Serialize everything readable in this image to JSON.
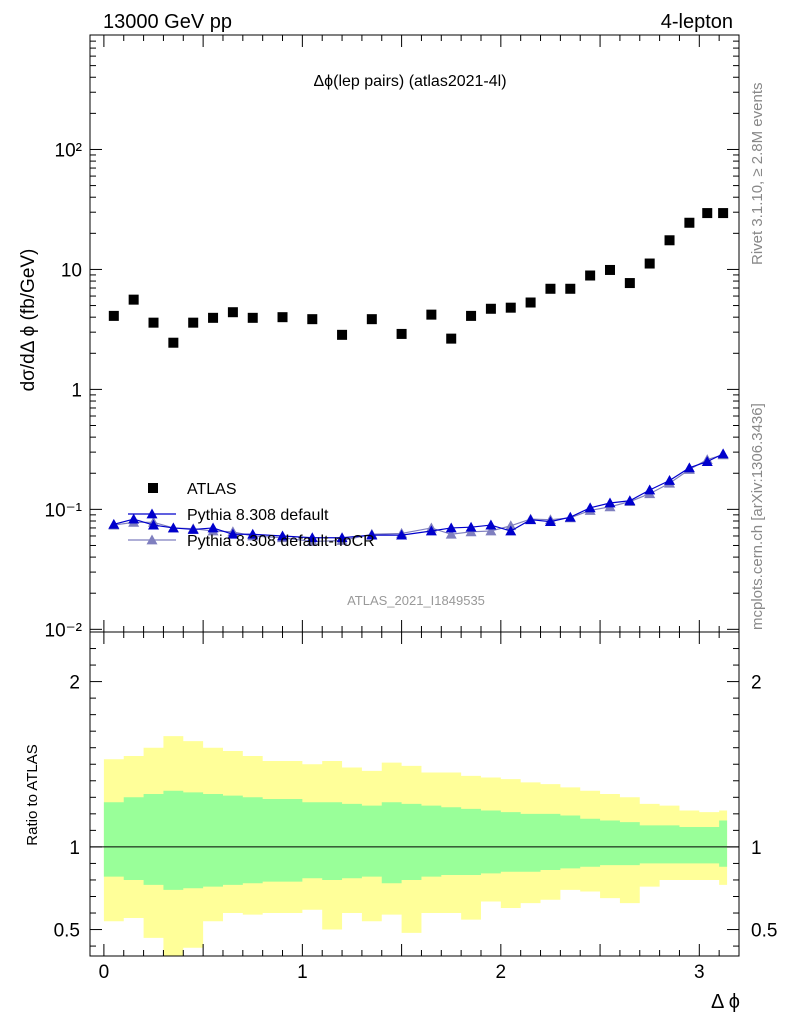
{
  "header": {
    "energy_label": "13000 GeV pp",
    "process_label": "4-lepton"
  },
  "side_labels": {
    "rivet": "Rivet 3.1.10, ≥ 2.8M events",
    "mcplots": "mcplots.cern.ch [arXiv:1306.3436]"
  },
  "colors": {
    "atlas": "#000000",
    "pythia_default": "#0000cc",
    "pythia_nocr": "#7f7fbf",
    "band_inner": "#99ff99",
    "band_outer": "#ffff99"
  },
  "chart_data": [
    {
      "type": "scatter",
      "title": "Δϕ(lep pairs) (atlas2021-4l)",
      "watermark": "ATLAS_2021_I1849535",
      "xlabel": "Δ ϕ",
      "ylabel": "dσ/dΔ ϕ (fb/GeV)",
      "yscale": "log",
      "xlim": [
        -0.07,
        3.2
      ],
      "ylim": [
        0.0095,
        900
      ],
      "ytick_labels": [
        "10⁻²",
        "10⁻¹",
        "1",
        "10",
        "10²"
      ],
      "xtick_labels": [
        "0",
        "1",
        "2",
        "3"
      ],
      "legend_position": "lower-left",
      "x": [
        0.05,
        0.15,
        0.25,
        0.35,
        0.45,
        0.55,
        0.65,
        0.75,
        0.9,
        1.05,
        1.2,
        1.35,
        1.5,
        1.65,
        1.75,
        1.85,
        1.95,
        2.05,
        2.15,
        2.25,
        2.35,
        2.45,
        2.55,
        2.65,
        2.75,
        2.85,
        2.95,
        3.04,
        3.12
      ],
      "series": [
        {
          "name": "ATLAS",
          "marker": "square",
          "values": [
            4.1,
            5.6,
            3.6,
            2.45,
            3.6,
            3.95,
            4.4,
            3.95,
            4.0,
            3.85,
            2.85,
            3.85,
            2.9,
            4.2,
            2.65,
            4.1,
            4.7,
            4.8,
            5.3,
            6.9,
            6.9,
            8.9,
            9.9,
            7.7,
            11.2,
            17.5,
            24.5,
            29.5,
            29.5
          ]
        },
        {
          "name": "Pythia 8.308 default",
          "marker": "triangle",
          "values": [
            0.075,
            0.083,
            0.074,
            0.07,
            0.068,
            0.07,
            0.062,
            0.062,
            0.06,
            0.058,
            0.058,
            0.061,
            0.061,
            0.066,
            0.07,
            0.071,
            0.074,
            0.066,
            0.082,
            0.079,
            0.086,
            0.103,
            0.113,
            0.118,
            0.145,
            0.174,
            0.222,
            0.25,
            0.29
          ]
        },
        {
          "name": "Pythia 8.308 default-noCR",
          "marker": "triangle",
          "values": [
            0.074,
            0.078,
            0.078,
            0.07,
            0.069,
            0.066,
            0.065,
            0.06,
            0.058,
            0.054,
            0.055,
            0.062,
            0.063,
            0.07,
            0.062,
            0.065,
            0.066,
            0.073,
            0.083,
            0.082,
            0.085,
            0.098,
            0.105,
            0.116,
            0.135,
            0.165,
            0.215,
            0.26,
            0.285
          ]
        }
      ]
    },
    {
      "type": "area",
      "ylabel": "Ratio to ATLAS",
      "xlabel": "Δ ϕ",
      "xlim": [
        -0.07,
        3.2
      ],
      "ylim": [
        0.34,
        2.3
      ],
      "ytick_labels": [
        "0.5",
        "1",
        "2"
      ],
      "xtick_labels": [
        "0",
        "1",
        "2",
        "3"
      ],
      "reference_line": 1,
      "bin_edges": [
        0,
        0.1,
        0.2,
        0.3,
        0.4,
        0.5,
        0.6,
        0.7,
        0.8,
        1.0,
        1.1,
        1.2,
        1.3,
        1.4,
        1.5,
        1.6,
        1.7,
        1.8,
        1.9,
        2.0,
        2.1,
        2.2,
        2.3,
        2.4,
        2.5,
        2.6,
        2.7,
        2.8,
        2.9,
        3.0,
        3.1,
        3.14
      ],
      "inner_band": {
        "lower": [
          0.82,
          0.8,
          0.77,
          0.74,
          0.75,
          0.76,
          0.77,
          0.78,
          0.79,
          0.81,
          0.8,
          0.81,
          0.82,
          0.78,
          0.8,
          0.82,
          0.83,
          0.83,
          0.84,
          0.85,
          0.85,
          0.86,
          0.87,
          0.88,
          0.89,
          0.89,
          0.9,
          0.9,
          0.9,
          0.9,
          0.88
        ],
        "upper": [
          1.27,
          1.3,
          1.32,
          1.34,
          1.33,
          1.32,
          1.31,
          1.3,
          1.29,
          1.27,
          1.27,
          1.26,
          1.25,
          1.27,
          1.26,
          1.25,
          1.24,
          1.23,
          1.22,
          1.21,
          1.2,
          1.2,
          1.19,
          1.17,
          1.16,
          1.15,
          1.13,
          1.13,
          1.12,
          1.12,
          1.16
        ]
      },
      "outer_band": {
        "lower": [
          0.55,
          0.57,
          0.45,
          0.34,
          0.39,
          0.55,
          0.6,
          0.59,
          0.6,
          0.62,
          0.5,
          0.6,
          0.55,
          0.59,
          0.48,
          0.6,
          0.6,
          0.56,
          0.67,
          0.63,
          0.66,
          0.68,
          0.74,
          0.73,
          0.69,
          0.66,
          0.76,
          0.8,
          0.8,
          0.8,
          0.77
        ],
        "upper": [
          1.53,
          1.55,
          1.6,
          1.67,
          1.64,
          1.6,
          1.58,
          1.55,
          1.52,
          1.5,
          1.52,
          1.48,
          1.46,
          1.51,
          1.49,
          1.45,
          1.45,
          1.43,
          1.42,
          1.41,
          1.39,
          1.38,
          1.36,
          1.34,
          1.32,
          1.3,
          1.26,
          1.25,
          1.22,
          1.21,
          1.22
        ]
      }
    }
  ]
}
